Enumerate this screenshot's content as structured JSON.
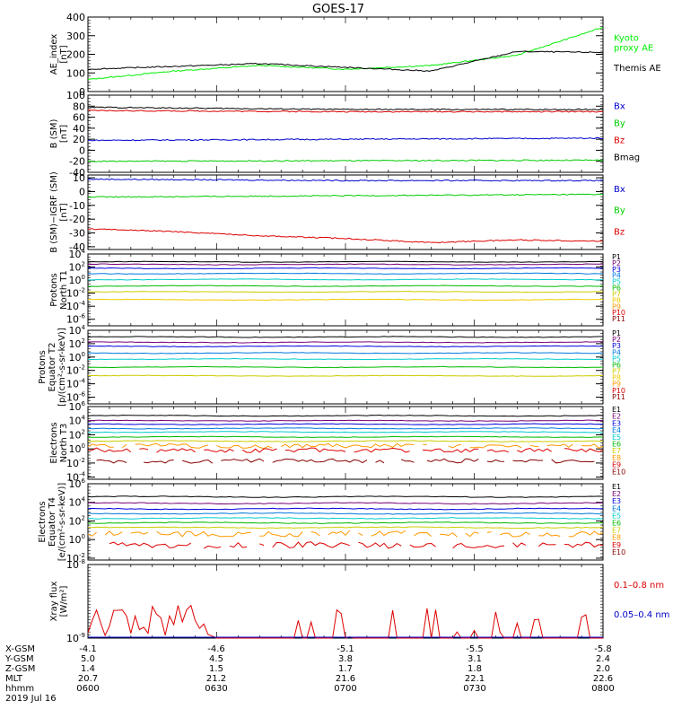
{
  "title": "GOES-17",
  "chart_data": [
    {
      "type": "line",
      "ylabel": [
        "AE_index",
        "[nT]"
      ],
      "ylim": [
        0,
        400
      ],
      "yticks": [
        "0",
        "100",
        "200",
        "300",
        "400"
      ],
      "series": [
        {
          "name": "Kyoto proxy AE",
          "color": "#00ee00",
          "x": [
            0,
            10,
            20,
            30,
            40,
            50,
            60
          ],
          "y": [
            65,
            110,
            140,
            120,
            140,
            195,
            345
          ],
          "label": [
            "Kyoto",
            "proxy AE"
          ]
        },
        {
          "name": "Themis AE",
          "color": "#000000",
          "x": [
            0,
            10,
            20,
            30,
            40,
            50,
            60
          ],
          "y": [
            120,
            135,
            150,
            130,
            110,
            215,
            210
          ],
          "label": [
            "Themis AE"
          ]
        }
      ]
    },
    {
      "type": "line",
      "ylabel": [
        "B (SM)",
        "[nT]"
      ],
      "ylim": [
        -40,
        100
      ],
      "yticks": [
        "-40",
        "-20",
        "0",
        "20",
        "40",
        "60",
        "80",
        "100"
      ],
      "series": [
        {
          "name": "Bx",
          "color": "#0000cc",
          "x": [
            0,
            30,
            60
          ],
          "y": [
            18,
            20,
            22
          ],
          "label": [
            "Bx"
          ]
        },
        {
          "name": "By",
          "color": "#00cc00",
          "x": [
            0,
            30,
            60
          ],
          "y": [
            -20,
            -19,
            -18
          ],
          "label": [
            "By"
          ]
        },
        {
          "name": "Bz",
          "color": "#dd0000",
          "x": [
            0,
            30,
            60
          ],
          "y": [
            72,
            70,
            70
          ],
          "label": [
            "Bz"
          ]
        },
        {
          "name": "Bmag",
          "color": "#000000",
          "x": [
            0,
            30,
            60
          ],
          "y": [
            78,
            74,
            74
          ],
          "label": [
            "Bmag"
          ]
        }
      ]
    },
    {
      "type": "line",
      "ylabel": [
        "B (SM)−IGRF (SM)",
        "[nT]"
      ],
      "ylim": [
        -42,
        12
      ],
      "yticks": [
        "-40",
        "-30",
        "-20",
        "-10",
        "0",
        "10"
      ],
      "series": [
        {
          "name": "Bx",
          "color": "#0000cc",
          "x": [
            0,
            30,
            60
          ],
          "y": [
            9,
            8,
            8
          ],
          "label": [
            "Bx"
          ]
        },
        {
          "name": "By",
          "color": "#00cc00",
          "x": [
            0,
            30,
            60
          ],
          "y": [
            -4,
            -3,
            -2
          ],
          "label": [
            "By"
          ]
        },
        {
          "name": "Bz",
          "color": "#dd0000",
          "x": [
            0,
            10,
            20,
            30,
            40,
            50,
            60
          ],
          "y": [
            -27,
            -29,
            -32,
            -34,
            -37,
            -35,
            -36
          ],
          "label": [
            "Bz"
          ]
        }
      ]
    },
    {
      "type": "line",
      "ylabel": [
        "Protons",
        "North T1"
      ],
      "ylim": [
        -7,
        4
      ],
      "yticks": [
        "10^4",
        "10^2",
        "10^0",
        "10^-2",
        "10^-4",
        "10^-6"
      ],
      "channels": [
        {
          "name": "P1",
          "color": "#000000",
          "value": 2.8
        },
        {
          "name": "P2",
          "color": "#770077",
          "value": 2.4
        },
        {
          "name": "P3",
          "color": "#0000dd",
          "value": 1.8
        },
        {
          "name": "P4",
          "color": "#0077dd",
          "value": 1.0
        },
        {
          "name": "P5",
          "color": "#00cccc",
          "value": 0.1
        },
        {
          "name": "P6",
          "color": "#00bb00",
          "value": -0.9
        },
        {
          "name": "P7",
          "color": "#cccc00",
          "value": -1.8
        },
        {
          "name": "P8",
          "color": "#eecc00",
          "value": -3.0
        },
        {
          "name": "P9",
          "color": "#ff9900",
          "value": null
        },
        {
          "name": "P10",
          "color": "#dd0000",
          "value": null
        },
        {
          "name": "P11",
          "color": "#880000",
          "value": null
        }
      ]
    },
    {
      "type": "line",
      "ylabel": [
        "Protons",
        "Equator T2",
        "[p/(cm²-s-sr-keV)]"
      ],
      "ylim": [
        -7,
        4
      ],
      "yticks": [
        "10^4",
        "10^2",
        "10^0",
        "10^-2",
        "10^-4",
        "10^-6"
      ],
      "channels": [
        {
          "name": "P1",
          "color": "#000000",
          "value": 3.0
        },
        {
          "name": "P2",
          "color": "#770077",
          "value": 2.2
        },
        {
          "name": "P3",
          "color": "#0000dd",
          "value": 1.6
        },
        {
          "name": "P4",
          "color": "#0077dd",
          "value": 0.6
        },
        {
          "name": "P5",
          "color": "#00cccc",
          "value": -0.3
        },
        {
          "name": "P6",
          "color": "#00bb00",
          "value": -1.5
        },
        {
          "name": "P7",
          "color": "#cccc00",
          "value": -2.8
        },
        {
          "name": "P8",
          "color": "#eecc00",
          "value": null
        },
        {
          "name": "P9",
          "color": "#ff9900",
          "value": null
        },
        {
          "name": "P10",
          "color": "#dd0000",
          "value": null
        },
        {
          "name": "P11",
          "color": "#880000",
          "value": null
        }
      ]
    },
    {
      "type": "line",
      "ylabel": [
        "Electrons",
        "North T3"
      ],
      "ylim": [
        -4.3,
        6
      ],
      "yticks": [
        "10^6",
        "10^4",
        "10^2",
        "10^0",
        "10^-2",
        "10^-4"
      ],
      "channels": [
        {
          "name": "E1",
          "color": "#000000",
          "value": 4.7
        },
        {
          "name": "E2",
          "color": "#770077",
          "value": 4.0
        },
        {
          "name": "E3",
          "color": "#0000dd",
          "value": 3.5
        },
        {
          "name": "E4",
          "color": "#0077dd",
          "value": 2.9
        },
        {
          "name": "E5",
          "color": "#00cccc",
          "value": 2.4
        },
        {
          "name": "E6",
          "color": "#00bb00",
          "value": 1.7
        },
        {
          "name": "E7",
          "color": "#cccc00",
          "value": 1.1
        },
        {
          "name": "E8",
          "color": "#ff9900",
          "value": 0.4
        },
        {
          "name": "E9",
          "color": "#dd0000",
          "value": -0.2
        },
        {
          "name": "E10",
          "color": "#880000",
          "value": -1.7
        }
      ]
    },
    {
      "type": "line",
      "ylabel": [
        "Electrons",
        "Equator T4",
        "[e/(cm²-s-sr-keV)]"
      ],
      "ylim": [
        -2.2,
        6
      ],
      "yticks": [
        "10^6",
        "10^4",
        "10^2",
        "10^0",
        "10^-2"
      ],
      "channels": [
        {
          "name": "E1",
          "color": "#000000",
          "value": 4.6
        },
        {
          "name": "E2",
          "color": "#770077",
          "value": 3.9
        },
        {
          "name": "E3",
          "color": "#0000dd",
          "value": 3.3
        },
        {
          "name": "E4",
          "color": "#0077dd",
          "value": 2.8
        },
        {
          "name": "E5",
          "color": "#00cccc",
          "value": 2.3
        },
        {
          "name": "E6",
          "color": "#00bb00",
          "value": 1.8
        },
        {
          "name": "E7",
          "color": "#cccc00",
          "value": 1.3
        },
        {
          "name": "E8",
          "color": "#ff9900",
          "value": 0.6
        },
        {
          "name": "E9",
          "color": "#dd0000",
          "value": -0.6
        },
        {
          "name": "E10",
          "color": "#880000",
          "value": null
        }
      ]
    },
    {
      "type": "line",
      "ylabel": [
        "Xray flux",
        "[W/m²]"
      ],
      "ylim": [
        -9,
        -8
      ],
      "yticks": [
        "10^-8",
        "10^-9"
      ],
      "series": [
        {
          "name": "0.1–0.8 nm",
          "color": "#dd0000",
          "label": [
            "0.1–0.8 nm"
          ]
        },
        {
          "name": "0.05–0.4 nm",
          "color": "#0000cc",
          "label": [
            "0.05–0.4 nm"
          ]
        }
      ]
    }
  ],
  "x_axis": {
    "rows": [
      {
        "label": "X-GSM",
        "values": [
          "-4.1",
          "-4.6",
          "-5.1",
          "-5.5",
          "-5.8"
        ]
      },
      {
        "label": "Y-GSM",
        "values": [
          "5.0",
          "4.5",
          "3.8",
          "3.1",
          "2.4"
        ]
      },
      {
        "label": "Z-GSM",
        "values": [
          "1.4",
          "1.5",
          "1.7",
          "1.8",
          "2.0"
        ]
      },
      {
        "label": "MLT",
        "values": [
          "20.7",
          "21.2",
          "21.6",
          "22.1",
          "22.6"
        ]
      },
      {
        "label": "hhmm",
        "values": [
          "0600",
          "0630",
          "0700",
          "0730",
          "0800"
        ]
      }
    ],
    "date": "2019 Jul 16"
  }
}
